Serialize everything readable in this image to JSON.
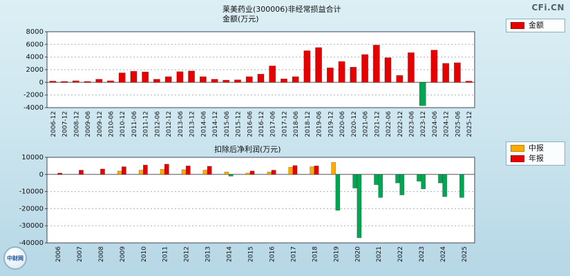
{
  "page": {
    "watermark": "CFi.CN"
  },
  "logo": {
    "text": "中财网"
  },
  "chart_data": [
    {
      "type": "bar",
      "title": "莱美药业(300006)非经常损益合计",
      "subtitle": "金额(万元)",
      "xlabel": "",
      "ylabel": "金额(万元)",
      "ylim": [
        -4000,
        8000
      ],
      "yticks": [
        8000,
        6000,
        4000,
        2000,
        0,
        -2000,
        -4000
      ],
      "grid": "dashed-horizontal",
      "legend_position": "top-right",
      "negative_color": "#00a651",
      "legend": [
        {
          "label": "金额",
          "color": "#e60000"
        }
      ],
      "categories": [
        "2006-12",
        "2007-12",
        "2008-12",
        "2009-06",
        "2009-12",
        "2010-06",
        "2010-12",
        "2011-06",
        "2011-12",
        "2012-06",
        "2012-12",
        "2013-06",
        "2013-12",
        "2014-06",
        "2014-12",
        "2015-06",
        "2015-12",
        "2016-06",
        "2016-12",
        "2017-06",
        "2017-12",
        "2018-06",
        "2018-12",
        "2019-06",
        "2019-12",
        "2020-06",
        "2020-12",
        "2021-06",
        "2021-12",
        "2022-06",
        "2022-12",
        "2023-06",
        "2023-12",
        "2024-06",
        "2024-12",
        "2025-06",
        "2025-12"
      ],
      "series": [
        {
          "name": "金额",
          "color": "#e60000",
          "values": [
            200,
            150,
            250,
            150,
            500,
            250,
            1500,
            1750,
            1650,
            500,
            900,
            1700,
            1800,
            900,
            500,
            350,
            400,
            900,
            1300,
            2600,
            550,
            900,
            5000,
            5500,
            2300,
            3300,
            2400,
            4400,
            5900,
            3900,
            1100,
            4700,
            -3700,
            5100,
            3000,
            3100,
            200
          ]
        }
      ]
    },
    {
      "type": "bar",
      "title": "扣除后净利润(万元)",
      "subtitle": "",
      "xlabel": "",
      "ylabel": "扣除后净利润(万元)",
      "ylim": [
        -40000,
        10000
      ],
      "yticks": [
        10000,
        0,
        -10000,
        -20000,
        -30000,
        -40000
      ],
      "grid": "dashed-horizontal",
      "legend_position": "top-right",
      "negative_color": "#00a651",
      "legend": [
        {
          "label": "中报",
          "color": "#ffaa00"
        },
        {
          "label": "年报",
          "color": "#e60000"
        }
      ],
      "categories": [
        "2006",
        "2007",
        "2008",
        "2009",
        "2010",
        "2011",
        "2012",
        "2013",
        "2014",
        "2015",
        "2016",
        "2017",
        "2018",
        "2019",
        "2020",
        "2021",
        "2022",
        "2023",
        "2024",
        "2025"
      ],
      "series": [
        {
          "name": "中报",
          "color": "#ffaa00",
          "values": [
            null,
            null,
            null,
            2000,
            2500,
            3000,
            2800,
            2500,
            1500,
            800,
            1500,
            4200,
            4500,
            7000,
            -8000,
            -6000,
            -5000,
            -4000,
            -5000,
            -13500
          ]
        },
        {
          "name": "年报",
          "color": "#e60000",
          "values": [
            800,
            2500,
            3200,
            4500,
            5500,
            6000,
            5000,
            4800,
            -1000,
            2000,
            2500,
            5200,
            5000,
            -21000,
            -37000,
            -13500,
            -12000,
            -8500,
            -13000,
            null
          ]
        }
      ]
    }
  ]
}
